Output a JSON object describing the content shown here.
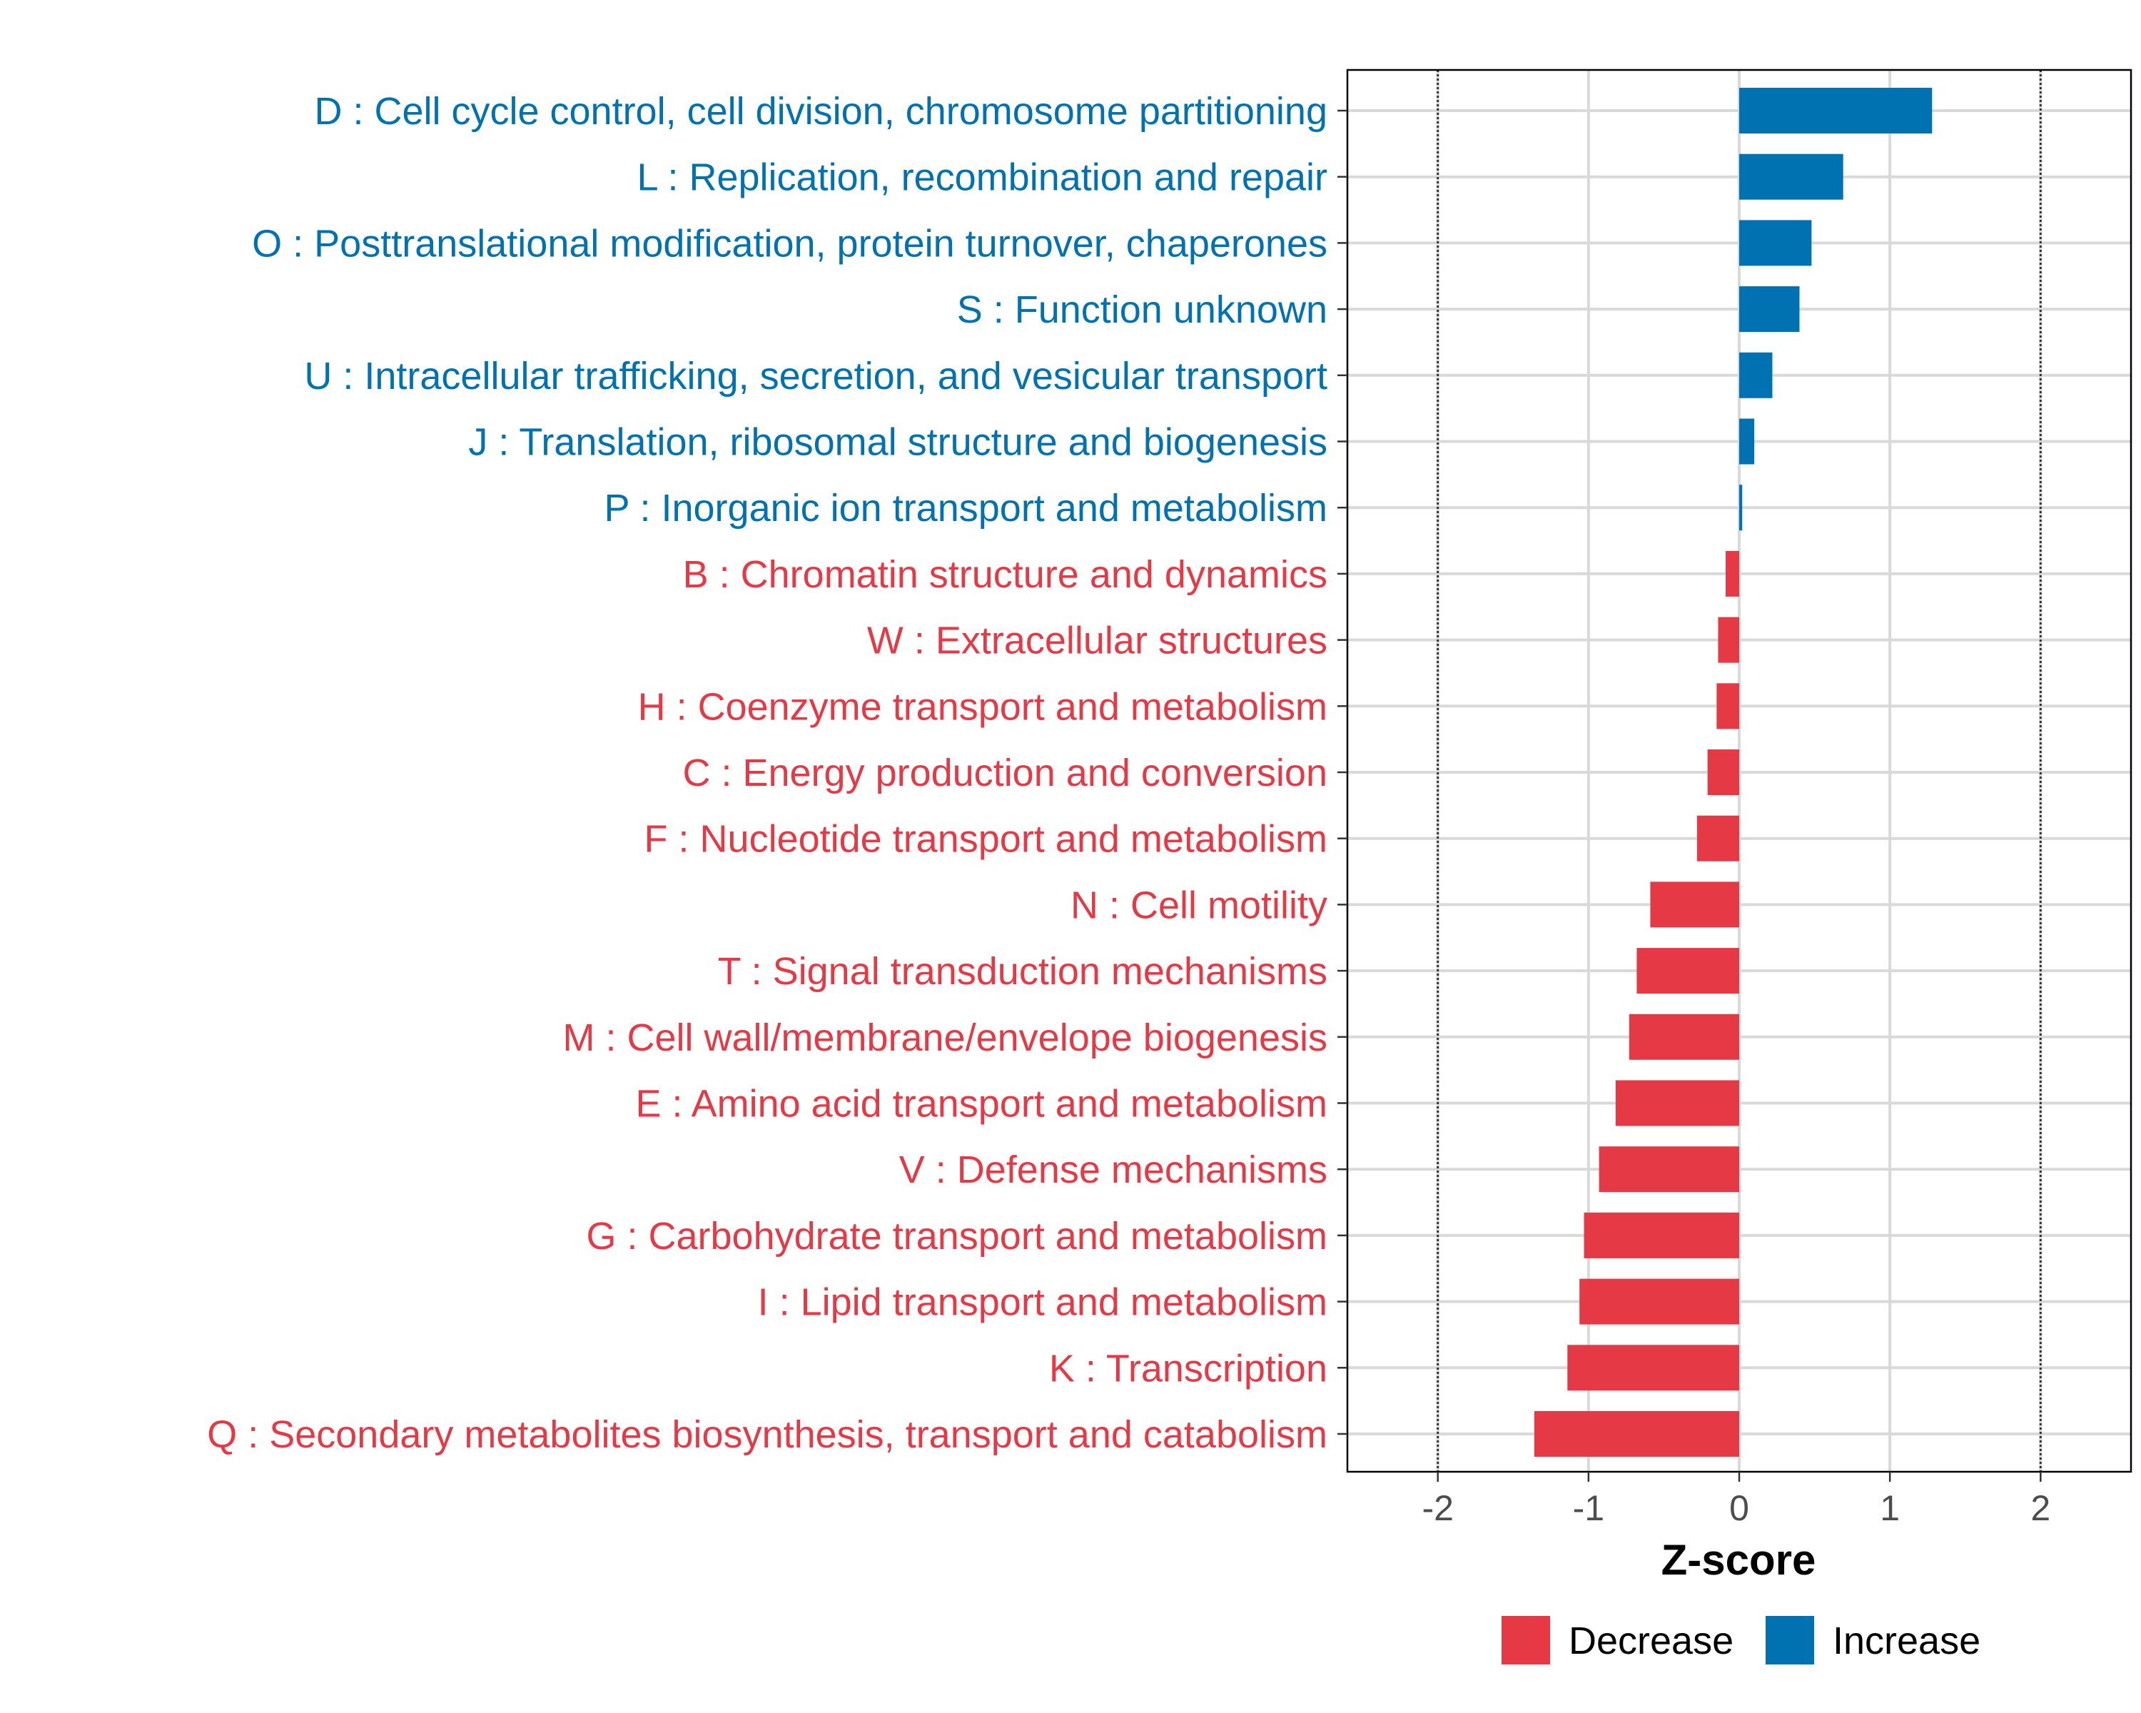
{
  "chart_data": {
    "type": "bar",
    "orientation": "horizontal",
    "xlabel": "Z-score",
    "xlim": [
      -2.6,
      2.6
    ],
    "xticks": [
      -2,
      -1,
      0,
      1,
      2
    ],
    "xtick_labels": [
      "-2",
      "-1",
      "0",
      "1",
      "2"
    ],
    "reference_lines": [
      -2,
      2
    ],
    "grid": true,
    "legend_position": "bottom-right",
    "colors": {
      "Decrease": "#E63946",
      "Increase": "#0072B2"
    },
    "legend": [
      {
        "label": "Decrease",
        "color": "#E63946"
      },
      {
        "label": "Increase",
        "color": "#0072B2"
      }
    ],
    "categories": [
      "D : Cell cycle control, cell division, chromosome partitioning",
      "L : Replication, recombination and repair",
      "O : Posttranslational modification, protein turnover, chaperones",
      "S : Function unknown",
      "U : Intracellular trafficking, secretion, and vesicular transport",
      "J : Translation, ribosomal structure and biogenesis",
      "P : Inorganic ion transport and metabolism",
      "B : Chromatin structure and dynamics",
      "W : Extracellular structures",
      "H : Coenzyme transport and metabolism",
      "C : Energy production and conversion",
      "F : Nucleotide transport and metabolism",
      "N : Cell motility",
      "T : Signal transduction mechanisms",
      "M : Cell wall/membrane/envelope biogenesis",
      "E : Amino acid transport and metabolism",
      "V : Defense mechanisms",
      "G : Carbohydrate transport and metabolism",
      "I : Lipid transport and metabolism",
      "K : Transcription",
      "Q : Secondary metabolites biosynthesis, transport and catabolism"
    ],
    "values": [
      1.28,
      0.69,
      0.48,
      0.4,
      0.22,
      0.1,
      0.02,
      -0.09,
      -0.14,
      -0.15,
      -0.21,
      -0.28,
      -0.59,
      -0.68,
      -0.73,
      -0.82,
      -0.93,
      -1.03,
      -1.06,
      -1.14,
      -1.36
    ],
    "groups": [
      "Increase",
      "Increase",
      "Increase",
      "Increase",
      "Increase",
      "Increase",
      "Increase",
      "Decrease",
      "Decrease",
      "Decrease",
      "Decrease",
      "Decrease",
      "Decrease",
      "Decrease",
      "Decrease",
      "Decrease",
      "Decrease",
      "Decrease",
      "Decrease",
      "Decrease",
      "Decrease"
    ]
  }
}
